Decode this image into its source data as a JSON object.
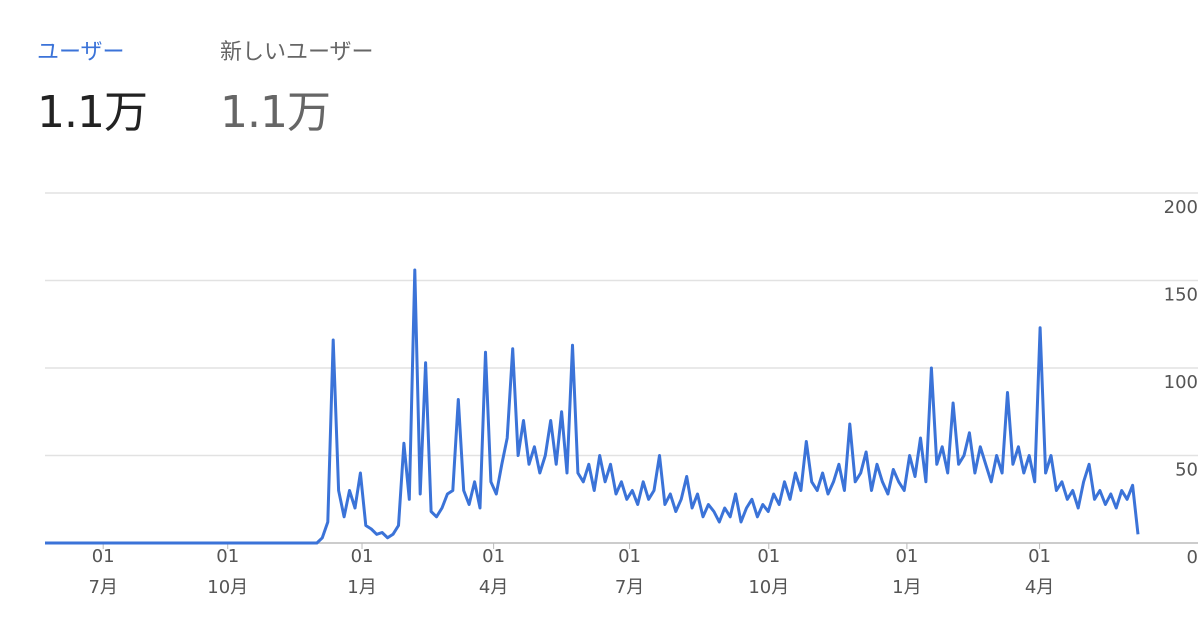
{
  "header": {
    "metrics": [
      {
        "label": "ユーザー",
        "value": "1.1万"
      },
      {
        "label": "新しいユーザー",
        "value": "1.1万"
      }
    ]
  },
  "chart_data": {
    "type": "line",
    "color": "#3b73d8",
    "grid": true,
    "series": [
      {
        "values": [
          0,
          0,
          0,
          0,
          0,
          0,
          0,
          0,
          0,
          0,
          0,
          0,
          0,
          0,
          0,
          0,
          0,
          0,
          0,
          0,
          0,
          0,
          0,
          0,
          0,
          0,
          0,
          0,
          0,
          0,
          0,
          0,
          0,
          0,
          0,
          0,
          0,
          0,
          0,
          0,
          0,
          0,
          0,
          0,
          0,
          0,
          0,
          0,
          0,
          0,
          0,
          3,
          12,
          116,
          30,
          15,
          30,
          20,
          40,
          10,
          8,
          5,
          6,
          3,
          5,
          10,
          57,
          25,
          156,
          28,
          103,
          18,
          15,
          20,
          28,
          30,
          82,
          30,
          22,
          35,
          20,
          109,
          35,
          28,
          45,
          60,
          111,
          50,
          70,
          45,
          55,
          40,
          50,
          70,
          45,
          75,
          40,
          113,
          40,
          35,
          45,
          30,
          50,
          35,
          45,
          28,
          35,
          25,
          30,
          22,
          35,
          25,
          30,
          50,
          22,
          28,
          18,
          25,
          38,
          20,
          28,
          15,
          22,
          18,
          12,
          20,
          15,
          28,
          12,
          20,
          25,
          15,
          22,
          18,
          28,
          22,
          35,
          25,
          40,
          30,
          58,
          35,
          30,
          40,
          28,
          35,
          45,
          30,
          68,
          35,
          40,
          52,
          30,
          45,
          35,
          28,
          42,
          35,
          30,
          50,
          38,
          60,
          35,
          100,
          45,
          55,
          40,
          80,
          45,
          50,
          63,
          40,
          55,
          45,
          35,
          50,
          40,
          86,
          45,
          55,
          40,
          50,
          35,
          123,
          40,
          50,
          30,
          35,
          25,
          30,
          20,
          35,
          45,
          25,
          30,
          22,
          28,
          20,
          30,
          25,
          33,
          5
        ]
      }
    ],
    "xlim": [
      0,
      201
    ],
    "xticks": [
      {
        "value": 10.7,
        "label": "01\n7月"
      },
      {
        "value": 33.6,
        "label": "01\n10月"
      },
      {
        "value": 58.3,
        "label": "01\n1月"
      },
      {
        "value": 82.5,
        "label": "01\n4月"
      },
      {
        "value": 107.5,
        "label": "01\n7月"
      },
      {
        "value": 133.1,
        "label": "01\n10月"
      },
      {
        "value": 158.5,
        "label": "01\n1月"
      },
      {
        "value": 182.9,
        "label": "01\n4月"
      }
    ],
    "ylim": [
      0,
      200
    ],
    "yticks": [
      0,
      50,
      100,
      150,
      200
    ]
  }
}
